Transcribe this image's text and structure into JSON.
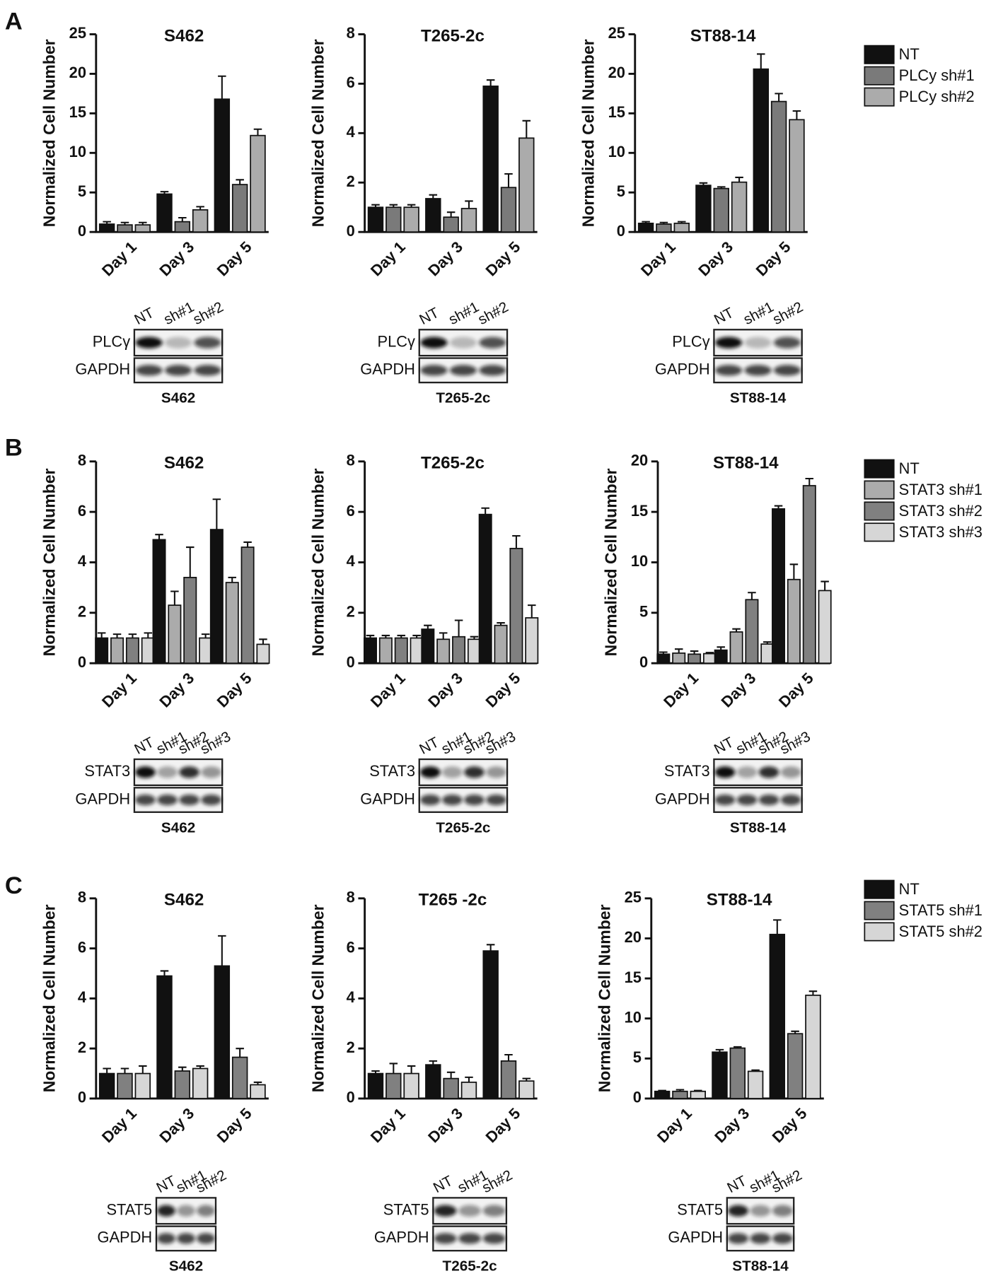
{
  "panels": [
    "A",
    "B",
    "C"
  ],
  "chart_data": [
    {
      "type": "bar",
      "title": "S462",
      "ylabel": "Normalized Cell Number",
      "categories": [
        "Day 1",
        "Day 3",
        "Day 5"
      ],
      "ylim": [
        0,
        25
      ],
      "yticks": [
        0,
        5,
        10,
        15,
        20,
        25
      ],
      "series": [
        {
          "color": "#111111",
          "values": [
            1.0,
            4.8,
            16.8
          ],
          "errors": [
            0.3,
            0.3,
            2.9
          ]
        },
        {
          "color": "#7a7a7a",
          "values": [
            0.9,
            1.3,
            6.0
          ],
          "errors": [
            0.3,
            0.5,
            0.6
          ]
        },
        {
          "color": "#ababab",
          "values": [
            0.9,
            2.8,
            12.2
          ],
          "errors": [
            0.3,
            0.4,
            0.8
          ]
        }
      ]
    },
    {
      "type": "bar",
      "title": "T265-2c",
      "ylabel": "Normalized Cell Number",
      "categories": [
        "Day 1",
        "Day 3",
        "Day 5"
      ],
      "ylim": [
        0,
        8
      ],
      "yticks": [
        0,
        2,
        4,
        6,
        8
      ],
      "series": [
        {
          "color": "#111111",
          "values": [
            1.0,
            1.35,
            5.9
          ],
          "errors": [
            0.1,
            0.15,
            0.25
          ]
        },
        {
          "color": "#7a7a7a",
          "values": [
            1.0,
            0.6,
            1.8
          ],
          "errors": [
            0.1,
            0.2,
            0.55
          ]
        },
        {
          "color": "#ababab",
          "values": [
            1.0,
            0.95,
            3.8
          ],
          "errors": [
            0.1,
            0.3,
            0.7
          ]
        }
      ]
    },
    {
      "type": "bar",
      "title": "ST88-14",
      "ylabel": "Normalized Cell Number",
      "categories": [
        "Day 1",
        "Day 3",
        "Day 5"
      ],
      "ylim": [
        0,
        25
      ],
      "yticks": [
        0,
        5,
        10,
        15,
        20,
        25
      ],
      "series": [
        {
          "name": "NT",
          "color": "#111111",
          "values": [
            1.1,
            5.9,
            20.6
          ],
          "errors": [
            0.2,
            0.3,
            1.9
          ]
        },
        {
          "name": "PLCy sh#1",
          "color": "#7a7a7a",
          "values": [
            1.0,
            5.5,
            16.5
          ],
          "errors": [
            0.2,
            0.2,
            1.0
          ]
        },
        {
          "name": "PLCy sh#2",
          "color": "#ababab",
          "values": [
            1.1,
            6.3,
            14.2
          ],
          "errors": [
            0.2,
            0.6,
            1.1
          ]
        }
      ]
    },
    {
      "type": "bar",
      "title": "S462",
      "ylabel": "Normalized Cell Number",
      "categories": [
        "Day 1",
        "Day 3",
        "Day 5"
      ],
      "ylim": [
        0,
        8
      ],
      "yticks": [
        0,
        2,
        4,
        6,
        8
      ],
      "series": [
        {
          "color": "#111111",
          "values": [
            1.0,
            4.9,
            5.3
          ],
          "errors": [
            0.2,
            0.2,
            1.2
          ]
        },
        {
          "color": "#ababab",
          "values": [
            1.0,
            2.3,
            3.2
          ],
          "errors": [
            0.15,
            0.55,
            0.2
          ]
        },
        {
          "color": "#808080",
          "values": [
            1.0,
            3.4,
            4.6
          ],
          "errors": [
            0.15,
            1.2,
            0.2
          ]
        },
        {
          "color": "#d6d6d6",
          "values": [
            1.0,
            1.0,
            0.75
          ],
          "errors": [
            0.2,
            0.15,
            0.2
          ]
        }
      ]
    },
    {
      "type": "bar",
      "title": "T265-2c",
      "ylabel": "Normalized Cell Number",
      "categories": [
        "Day 1",
        "Day 3",
        "Day 5"
      ],
      "ylim": [
        0,
        8
      ],
      "yticks": [
        0,
        2,
        4,
        6,
        8
      ],
      "series": [
        {
          "color": "#111111",
          "values": [
            1.0,
            1.35,
            5.9
          ],
          "errors": [
            0.1,
            0.15,
            0.25
          ]
        },
        {
          "color": "#ababab",
          "values": [
            1.0,
            0.95,
            1.5
          ],
          "errors": [
            0.1,
            0.25,
            0.1
          ]
        },
        {
          "color": "#808080",
          "values": [
            1.0,
            1.05,
            4.55
          ],
          "errors": [
            0.1,
            0.65,
            0.5
          ]
        },
        {
          "color": "#d6d6d6",
          "values": [
            1.0,
            0.95,
            1.8
          ],
          "errors": [
            0.1,
            0.1,
            0.5
          ]
        }
      ]
    },
    {
      "type": "bar",
      "title": "ST88-14",
      "ylabel": "Normalized Cell Number",
      "categories": [
        "Day 1",
        "Day 3",
        "Day 5"
      ],
      "ylim": [
        0,
        20
      ],
      "yticks": [
        0,
        5,
        10,
        15,
        20
      ],
      "series": [
        {
          "name": "NT",
          "color": "#111111",
          "values": [
            0.9,
            1.3,
            15.3
          ],
          "errors": [
            0.2,
            0.3,
            0.3
          ]
        },
        {
          "name": "STAT3 sh#1",
          "color": "#ababab",
          "values": [
            1.0,
            3.1,
            8.3
          ],
          "errors": [
            0.4,
            0.3,
            1.5
          ]
        },
        {
          "name": "STAT3 sh#2",
          "color": "#808080",
          "values": [
            0.9,
            6.3,
            17.6
          ],
          "errors": [
            0.3,
            0.7,
            0.7
          ]
        },
        {
          "name": "STAT3 sh#3",
          "color": "#d6d6d6",
          "values": [
            0.95,
            1.9,
            7.2
          ],
          "errors": [
            0.1,
            0.2,
            0.9
          ]
        }
      ]
    },
    {
      "type": "bar",
      "title": "S462",
      "ylabel": "Normalized Cell Number",
      "categories": [
        "Day 1",
        "Day 3",
        "Day 5"
      ],
      "ylim": [
        0,
        8
      ],
      "yticks": [
        0,
        2,
        4,
        6,
        8
      ],
      "series": [
        {
          "color": "#111111",
          "values": [
            1.0,
            4.9,
            5.3
          ],
          "errors": [
            0.2,
            0.2,
            1.2
          ]
        },
        {
          "color": "#808080",
          "values": [
            1.0,
            1.1,
            1.65
          ],
          "errors": [
            0.2,
            0.15,
            0.35
          ]
        },
        {
          "color": "#d6d6d6",
          "values": [
            1.0,
            1.2,
            0.55
          ],
          "errors": [
            0.3,
            0.1,
            0.1
          ]
        }
      ]
    },
    {
      "type": "bar",
      "title": "T265 -2c",
      "ylabel": "Normalized Cell Number",
      "categories": [
        "Day 1",
        "Day 3",
        "Day 5"
      ],
      "ylim": [
        0,
        8
      ],
      "yticks": [
        0,
        2,
        4,
        6,
        8
      ],
      "series": [
        {
          "color": "#111111",
          "values": [
            1.0,
            1.35,
            5.9
          ],
          "errors": [
            0.1,
            0.15,
            0.25
          ]
        },
        {
          "color": "#808080",
          "values": [
            1.0,
            0.8,
            1.5
          ],
          "errors": [
            0.4,
            0.25,
            0.25
          ]
        },
        {
          "color": "#d6d6d6",
          "values": [
            1.0,
            0.65,
            0.7
          ],
          "errors": [
            0.3,
            0.2,
            0.1
          ]
        }
      ]
    },
    {
      "type": "bar",
      "title": "ST88-14",
      "ylabel": "Normalized Cell Number",
      "categories": [
        "Day 1",
        "Day 3",
        "Day 5"
      ],
      "ylim": [
        0,
        25
      ],
      "yticks": [
        0,
        5,
        10,
        15,
        20,
        25
      ],
      "series": [
        {
          "name": "NT",
          "color": "#111111",
          "values": [
            0.9,
            5.8,
            20.5
          ],
          "errors": [
            0.1,
            0.3,
            1.8
          ]
        },
        {
          "name": "STAT5 sh#1",
          "color": "#808080",
          "values": [
            0.9,
            6.3,
            8.1
          ],
          "errors": [
            0.2,
            0.15,
            0.3
          ]
        },
        {
          "name": "STAT5 sh#2",
          "color": "#d6d6d6",
          "values": [
            0.9,
            3.4,
            12.9
          ],
          "errors": [
            0.1,
            0.15,
            0.5
          ]
        }
      ]
    }
  ],
  "blots": [
    {
      "lanes": [
        "NT",
        "sh#1",
        "sh#2"
      ],
      "rows": [
        "PLCγ",
        "GAPDH"
      ],
      "caption": "S462"
    },
    {
      "lanes": [
        "NT",
        "sh#1",
        "sh#2"
      ],
      "rows": [
        "PLCγ",
        "GAPDH"
      ],
      "caption": "T265-2c"
    },
    {
      "lanes": [
        "NT",
        "sh#1",
        "sh#2"
      ],
      "rows": [
        "PLCγ",
        "GAPDH"
      ],
      "caption": "ST88-14"
    },
    {
      "lanes": [
        "NT",
        "sh#1",
        "sh#2",
        "sh#3"
      ],
      "rows": [
        "STAT3",
        "GAPDH"
      ],
      "caption": "S462"
    },
    {
      "lanes": [
        "NT",
        "sh#1",
        "sh#2",
        "sh#3"
      ],
      "rows": [
        "STAT3",
        "GAPDH"
      ],
      "caption": "T265-2c"
    },
    {
      "lanes": [
        "NT",
        "sh#1",
        "sh#2",
        "sh#3"
      ],
      "rows": [
        "STAT3",
        "GAPDH"
      ],
      "caption": "ST88-14"
    },
    {
      "lanes": [
        "NT",
        "sh#1",
        "sh#2"
      ],
      "rows": [
        "STAT5",
        "GAPDH"
      ],
      "caption": "S462"
    },
    {
      "lanes": [
        "NT",
        "sh#1",
        "sh#2"
      ],
      "rows": [
        "STAT5",
        "GAPDH"
      ],
      "caption": "T265-2c"
    },
    {
      "lanes": [
        "NT",
        "sh#1",
        "sh#2"
      ],
      "rows": [
        "STAT5",
        "GAPDH"
      ],
      "caption": "ST88-14"
    }
  ]
}
